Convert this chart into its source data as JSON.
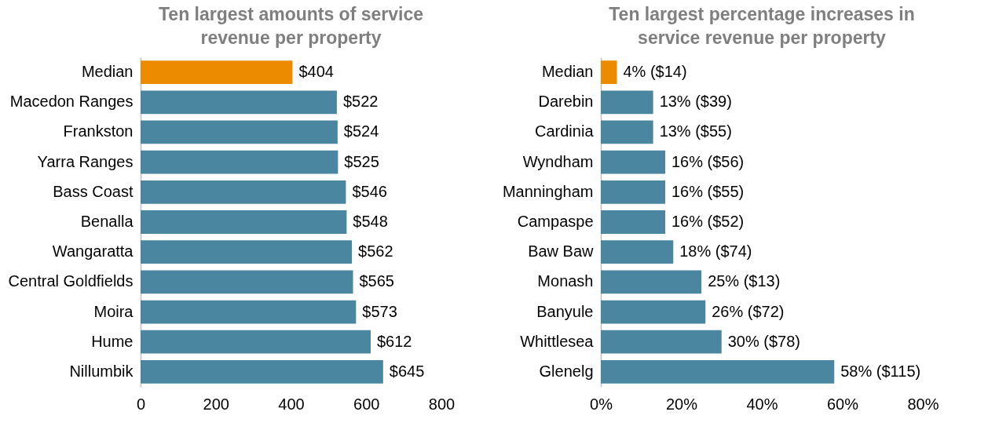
{
  "chart_data": [
    {
      "type": "bar",
      "orientation": "horizontal",
      "title": "Ten largest amounts of service\nrevenue per property",
      "categories": [
        "Median",
        "Macedon Ranges",
        "Frankston",
        "Yarra Ranges",
        "Bass Coast",
        "Benalla",
        "Wangaratta",
        "Central Goldfields",
        "Moira",
        "Hume",
        "Nillumbik"
      ],
      "values": [
        404,
        522,
        524,
        525,
        546,
        548,
        562,
        565,
        573,
        612,
        645
      ],
      "colors": [
        "#ed8b00",
        "#4a86a0",
        "#4a86a0",
        "#4a86a0",
        "#4a86a0",
        "#4a86a0",
        "#4a86a0",
        "#4a86a0",
        "#4a86a0",
        "#4a86a0",
        "#4a86a0"
      ],
      "value_labels": [
        "$404",
        "$522",
        "$524",
        "$525",
        "$546",
        "$548",
        "$562",
        "$565",
        "$573",
        "$612",
        "$645"
      ],
      "xlim": [
        0,
        800
      ],
      "xticks": [
        0,
        200,
        400,
        600,
        800
      ],
      "grid": false
    },
    {
      "type": "bar",
      "orientation": "horizontal",
      "title": "Ten largest percentage increases in\nservice revenue per property",
      "categories": [
        "Median",
        "Darebin",
        "Cardinia",
        "Wyndham",
        "Manningham",
        "Campaspe",
        "Baw Baw",
        "Monash",
        "Banyule",
        "Whittlesea",
        "Glenelg"
      ],
      "values": [
        4,
        13,
        13,
        16,
        16,
        16,
        18,
        25,
        26,
        30,
        58
      ],
      "colors": [
        "#ed8b00",
        "#4a86a0",
        "#4a86a0",
        "#4a86a0",
        "#4a86a0",
        "#4a86a0",
        "#4a86a0",
        "#4a86a0",
        "#4a86a0",
        "#4a86a0",
        "#4a86a0"
      ],
      "value_labels": [
        "4% ($14)",
        "13% ($39)",
        "13% ($55)",
        "16% ($56)",
        "16% ($55)",
        "16% ($52)",
        "18% ($74)",
        "25% ($13)",
        "26% ($72)",
        "30% ($78)",
        "58% ($115)"
      ],
      "xlim": [
        0,
        80
      ],
      "xticks": [
        {
          "value": 0,
          "label": "0%"
        },
        {
          "value": 20,
          "label": "20%"
        },
        {
          "value": 40,
          "label": "40%"
        },
        {
          "value": 60,
          "label": "60%"
        },
        {
          "value": 80,
          "label": "80%"
        }
      ],
      "grid": false
    }
  ]
}
